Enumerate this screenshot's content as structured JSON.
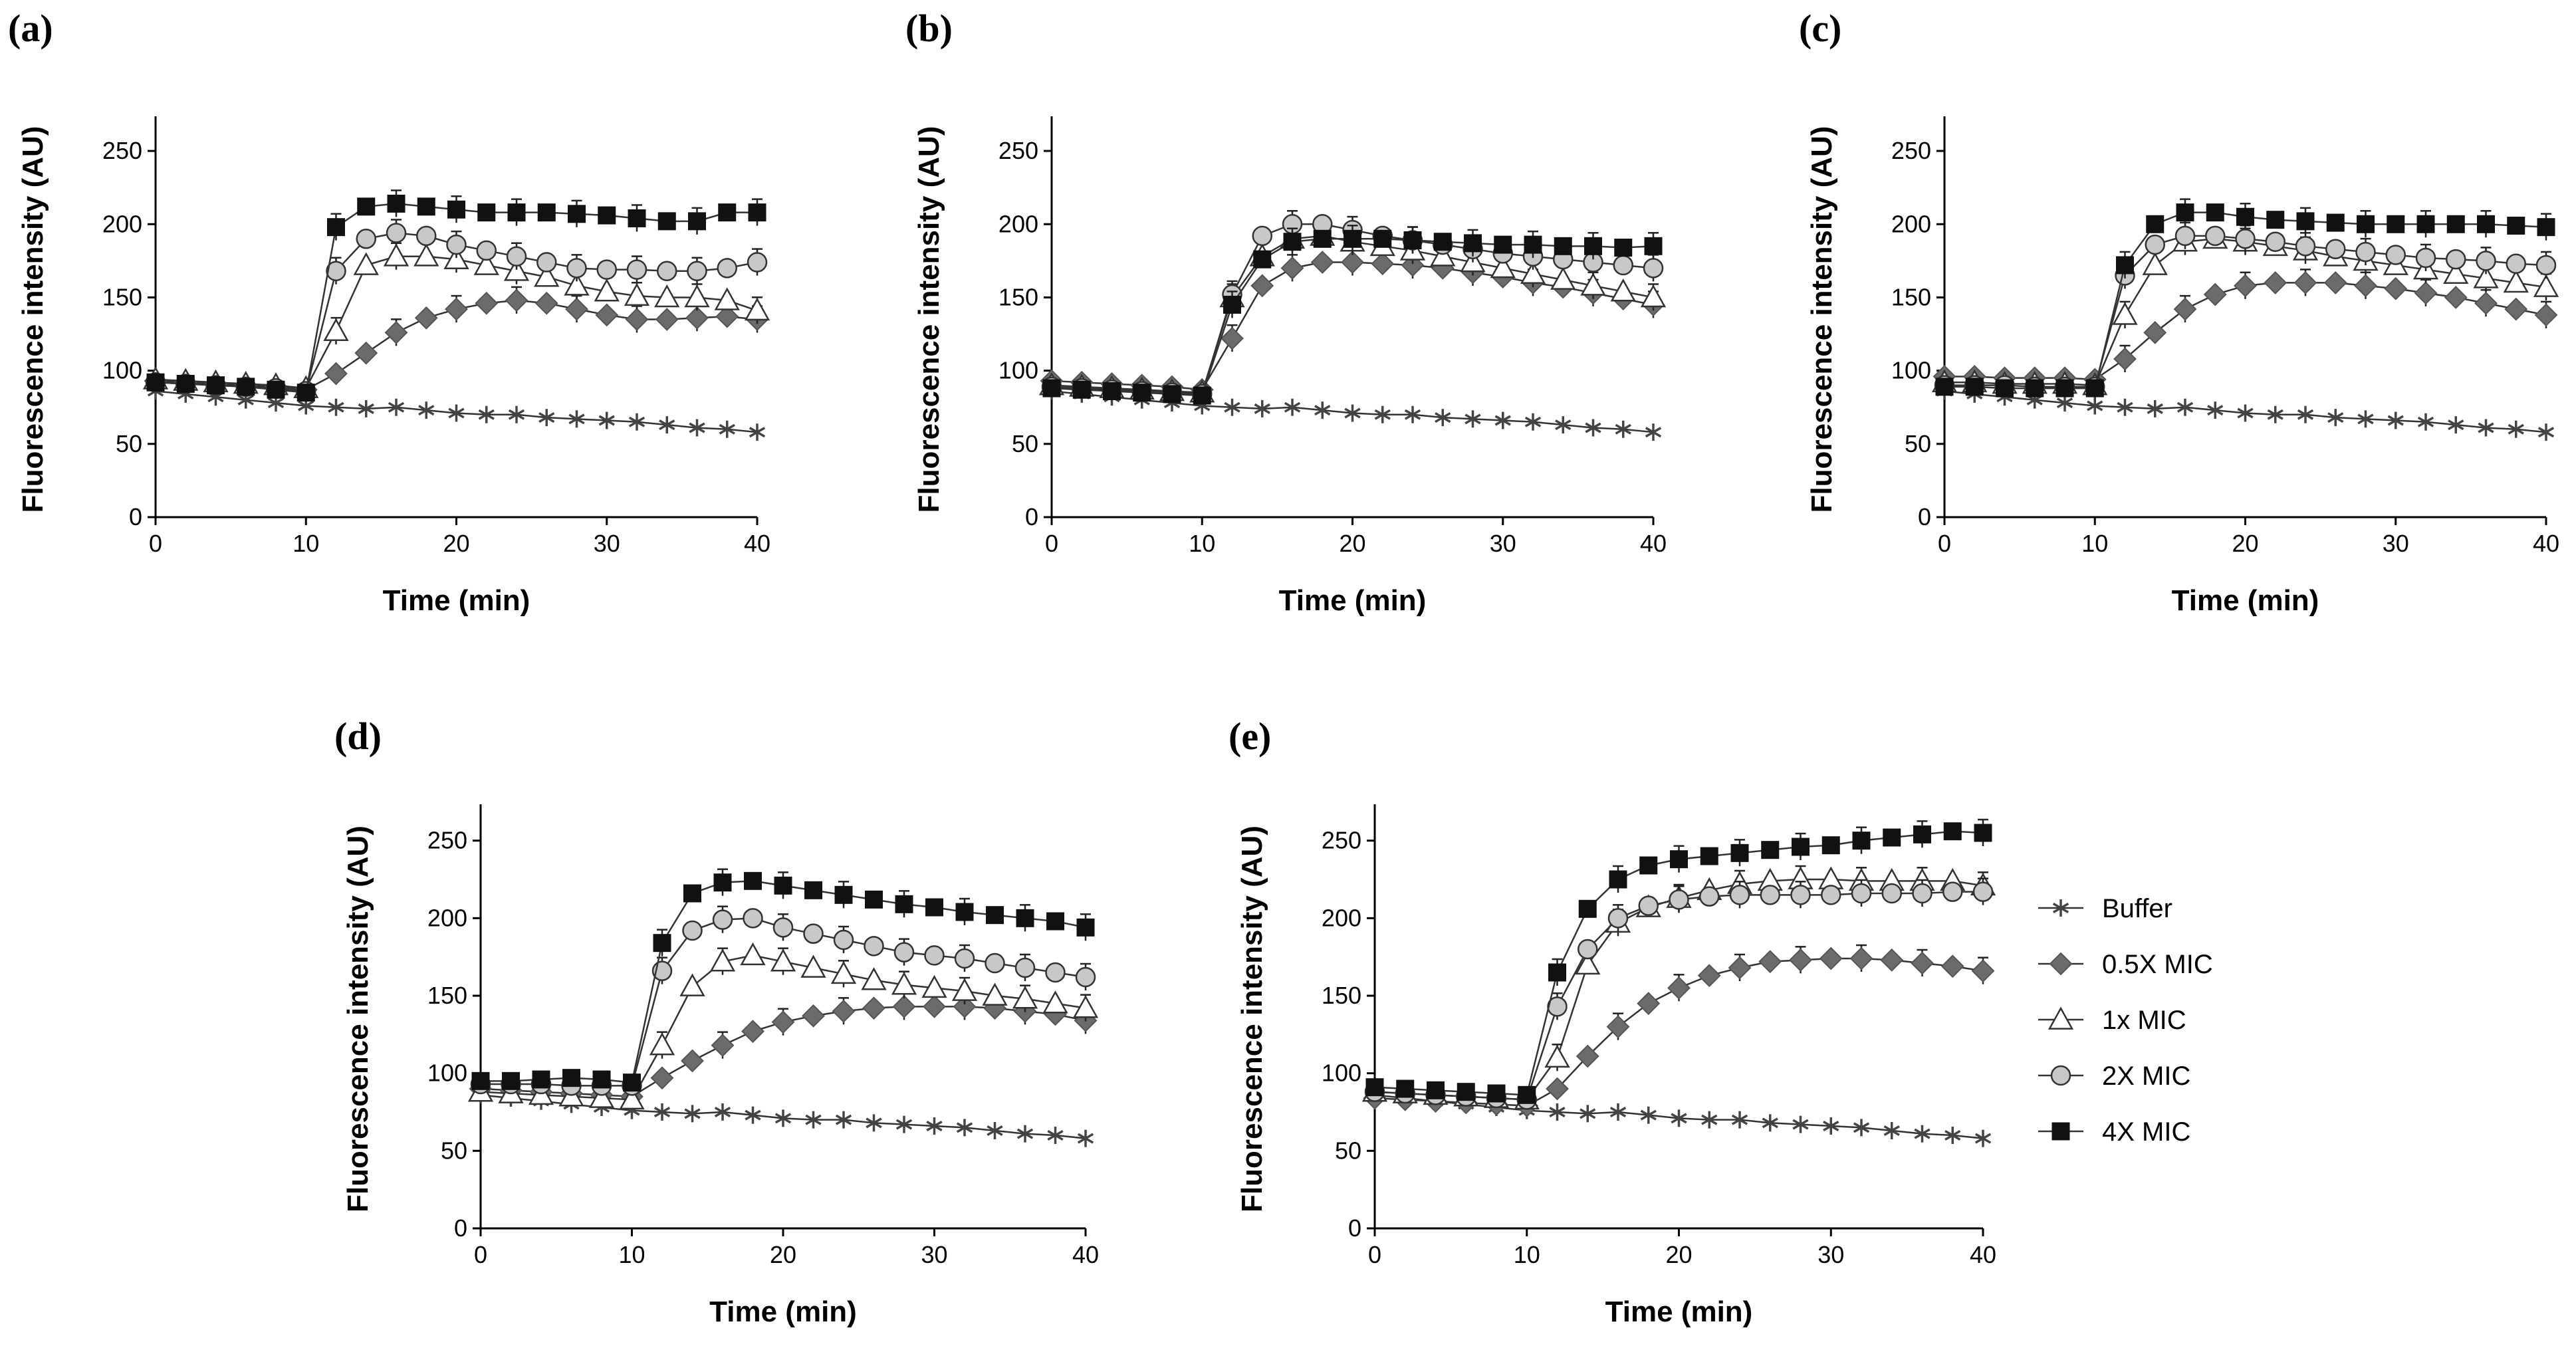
{
  "colors": {
    "buffer": "#444444",
    "half_mic": "#6b6b6b",
    "one_mic": "#ffffff",
    "two_mic": "#c8c8c8",
    "four_mic": "#111111",
    "line": "#333333"
  },
  "legend": [
    {
      "key": "buffer",
      "label": "Buffer",
      "marker": "star"
    },
    {
      "key": "half_mic",
      "label": "0.5X MIC",
      "marker": "diamond"
    },
    {
      "key": "one_mic",
      "label": "1x MIC",
      "marker": "triangle"
    },
    {
      "key": "two_mic",
      "label": "2X MIC",
      "marker": "circle"
    },
    {
      "key": "four_mic",
      "label": "4X MIC",
      "marker": "square"
    }
  ],
  "chart_data": [
    {
      "panel": "(a)",
      "type": "line",
      "xlabel": "Time (min)",
      "ylabel": "Fluorescence intensity (AU)",
      "xlim": [
        0,
        40
      ],
      "ylim": [
        0,
        270
      ],
      "xticks": [
        0,
        10,
        20,
        30,
        40
      ],
      "yticks": [
        0,
        50,
        100,
        150,
        200,
        250
      ],
      "x": [
        0,
        2,
        4,
        6,
        8,
        10,
        12,
        14,
        16,
        18,
        20,
        22,
        24,
        26,
        28,
        30,
        32,
        34,
        36,
        38,
        40
      ],
      "series": [
        {
          "key": "buffer",
          "name": "Buffer",
          "values": [
            86,
            84,
            82,
            80,
            78,
            76,
            75,
            74,
            75,
            73,
            71,
            70,
            70,
            68,
            67,
            66,
            65,
            63,
            61,
            60,
            58
          ]
        },
        {
          "key": "half_mic",
          "name": "0.5X MIC",
          "values": [
            93,
            92,
            91,
            90,
            89,
            87,
            98,
            112,
            126,
            136,
            142,
            146,
            148,
            146,
            142,
            138,
            135,
            135,
            136,
            137,
            135
          ]
        },
        {
          "key": "one_mic",
          "name": "1x MIC",
          "values": [
            94,
            93,
            92,
            91,
            90,
            88,
            127,
            172,
            178,
            178,
            176,
            172,
            168,
            164,
            158,
            154,
            151,
            150,
            150,
            148,
            141
          ]
        },
        {
          "key": "two_mic",
          "name": "2X MIC",
          "values": [
            92,
            91,
            90,
            89,
            88,
            86,
            168,
            190,
            194,
            192,
            186,
            182,
            178,
            174,
            170,
            169,
            169,
            168,
            168,
            170,
            174
          ]
        },
        {
          "key": "four_mic",
          "name": "4X MIC",
          "values": [
            92,
            91,
            90,
            89,
            87,
            85,
            198,
            212,
            214,
            212,
            210,
            208,
            208,
            208,
            207,
            206,
            204,
            202,
            202,
            208,
            208
          ]
        }
      ]
    },
    {
      "panel": "(b)",
      "type": "line",
      "xlabel": "Time (min)",
      "ylabel": "Fluorescence intensity (AU)",
      "xlim": [
        0,
        40
      ],
      "ylim": [
        0,
        270
      ],
      "xticks": [
        0,
        10,
        20,
        30,
        40
      ],
      "yticks": [
        0,
        50,
        100,
        150,
        200,
        250
      ],
      "x": [
        0,
        2,
        4,
        6,
        8,
        10,
        12,
        14,
        16,
        18,
        20,
        22,
        24,
        26,
        28,
        30,
        32,
        34,
        36,
        38,
        40
      ],
      "series": [
        {
          "key": "buffer",
          "name": "Buffer",
          "values": [
            86,
            84,
            82,
            80,
            78,
            76,
            75,
            74,
            75,
            73,
            71,
            70,
            70,
            68,
            67,
            66,
            65,
            63,
            61,
            60,
            58
          ]
        },
        {
          "key": "half_mic",
          "name": "0.5X MIC",
          "values": [
            93,
            92,
            91,
            90,
            89,
            87,
            122,
            158,
            170,
            174,
            174,
            173,
            172,
            170,
            167,
            164,
            160,
            157,
            153,
            149,
            145
          ]
        },
        {
          "key": "one_mic",
          "name": "1x MIC",
          "values": [
            90,
            89,
            88,
            87,
            86,
            85,
            150,
            178,
            190,
            192,
            188,
            185,
            182,
            178,
            174,
            170,
            166,
            162,
            158,
            154,
            150
          ]
        },
        {
          "key": "two_mic",
          "name": "2X MIC",
          "values": [
            89,
            88,
            87,
            86,
            85,
            84,
            152,
            192,
            200,
            200,
            196,
            192,
            189,
            186,
            183,
            180,
            178,
            176,
            174,
            172,
            170
          ]
        },
        {
          "key": "four_mic",
          "name": "4X MIC",
          "values": [
            88,
            87,
            86,
            85,
            84,
            83,
            145,
            176,
            188,
            190,
            190,
            190,
            189,
            188,
            187,
            186,
            186,
            185,
            185,
            184,
            185
          ]
        }
      ]
    },
    {
      "panel": "(c)",
      "type": "line",
      "xlabel": "Time (min)",
      "ylabel": "Fluorescence intensity (AU)",
      "xlim": [
        0,
        40
      ],
      "ylim": [
        0,
        270
      ],
      "xticks": [
        0,
        10,
        20,
        30,
        40
      ],
      "yticks": [
        0,
        50,
        100,
        150,
        200,
        250
      ],
      "x": [
        0,
        2,
        4,
        6,
        8,
        10,
        12,
        14,
        16,
        18,
        20,
        22,
        24,
        26,
        28,
        30,
        32,
        34,
        36,
        38,
        40
      ],
      "series": [
        {
          "key": "buffer",
          "name": "Buffer",
          "values": [
            86,
            84,
            82,
            80,
            78,
            76,
            75,
            74,
            75,
            73,
            71,
            70,
            70,
            68,
            67,
            66,
            65,
            63,
            61,
            60,
            58
          ]
        },
        {
          "key": "half_mic",
          "name": "0.5X MIC",
          "values": [
            96,
            96,
            95,
            95,
            95,
            94,
            108,
            126,
            142,
            152,
            158,
            160,
            160,
            160,
            158,
            156,
            153,
            150,
            146,
            142,
            138
          ]
        },
        {
          "key": "one_mic",
          "name": "1x MIC",
          "values": [
            92,
            92,
            91,
            91,
            91,
            90,
            138,
            172,
            188,
            190,
            188,
            185,
            182,
            178,
            175,
            172,
            169,
            166,
            163,
            160,
            157
          ]
        },
        {
          "key": "two_mic",
          "name": "2X MIC",
          "values": [
            90,
            90,
            90,
            89,
            89,
            89,
            165,
            186,
            192,
            192,
            190,
            188,
            185,
            183,
            181,
            179,
            177,
            176,
            175,
            173,
            172
          ]
        },
        {
          "key": "four_mic",
          "name": "4X MIC",
          "values": [
            89,
            89,
            88,
            88,
            88,
            88,
            172,
            200,
            208,
            208,
            205,
            203,
            202,
            201,
            200,
            200,
            200,
            200,
            200,
            199,
            198
          ]
        }
      ]
    },
    {
      "panel": "(d)",
      "type": "line",
      "xlabel": "Time (min)",
      "ylabel": "Fluorescence intensity (AU)",
      "xlim": [
        0,
        40
      ],
      "ylim": [
        0,
        270
      ],
      "xticks": [
        0,
        10,
        20,
        30,
        40
      ],
      "yticks": [
        0,
        50,
        100,
        150,
        200,
        250
      ],
      "x": [
        0,
        2,
        4,
        6,
        8,
        10,
        12,
        14,
        16,
        18,
        20,
        22,
        24,
        26,
        28,
        30,
        32,
        34,
        36,
        38,
        40
      ],
      "series": [
        {
          "key": "buffer",
          "name": "Buffer",
          "values": [
            86,
            84,
            82,
            80,
            78,
            76,
            75,
            74,
            75,
            73,
            71,
            70,
            70,
            68,
            67,
            66,
            65,
            63,
            61,
            60,
            58
          ]
        },
        {
          "key": "half_mic",
          "name": "0.5X MIC",
          "values": [
            90,
            89,
            88,
            87,
            86,
            85,
            97,
            108,
            118,
            127,
            133,
            137,
            140,
            142,
            143,
            143,
            143,
            142,
            140,
            138,
            134
          ]
        },
        {
          "key": "one_mic",
          "name": "1x MIC",
          "values": [
            88,
            87,
            86,
            85,
            84,
            83,
            118,
            156,
            172,
            176,
            172,
            168,
            164,
            160,
            157,
            155,
            153,
            150,
            148,
            145,
            142
          ]
        },
        {
          "key": "two_mic",
          "name": "2X MIC",
          "values": [
            93,
            93,
            93,
            92,
            92,
            92,
            166,
            192,
            199,
            200,
            194,
            190,
            186,
            182,
            178,
            176,
            174,
            171,
            168,
            165,
            162
          ]
        },
        {
          "key": "four_mic",
          "name": "4X MIC",
          "values": [
            95,
            95,
            96,
            97,
            96,
            94,
            184,
            216,
            223,
            224,
            221,
            218,
            215,
            212,
            209,
            207,
            204,
            202,
            200,
            198,
            194
          ]
        }
      ]
    },
    {
      "panel": "(e)",
      "type": "line",
      "xlabel": "Time (min)",
      "ylabel": "Fluorescence intensity (AU)",
      "xlim": [
        0,
        40
      ],
      "ylim": [
        0,
        270
      ],
      "xticks": [
        0,
        10,
        20,
        30,
        40
      ],
      "yticks": [
        0,
        50,
        100,
        150,
        200,
        250
      ],
      "x": [
        0,
        2,
        4,
        6,
        8,
        10,
        12,
        14,
        16,
        18,
        20,
        22,
        24,
        26,
        28,
        30,
        32,
        34,
        36,
        38,
        40
      ],
      "series": [
        {
          "key": "buffer",
          "name": "Buffer",
          "values": [
            86,
            84,
            82,
            80,
            78,
            76,
            75,
            74,
            75,
            73,
            71,
            70,
            70,
            68,
            67,
            66,
            65,
            63,
            61,
            60,
            58
          ]
        },
        {
          "key": "half_mic",
          "name": "0.5X MIC",
          "values": [
            84,
            83,
            82,
            81,
            80,
            79,
            90,
            111,
            130,
            145,
            155,
            163,
            168,
            172,
            173,
            174,
            174,
            173,
            171,
            169,
            166
          ]
        },
        {
          "key": "one_mic",
          "name": "1x MIC",
          "values": [
            88,
            87,
            86,
            85,
            84,
            83,
            110,
            170,
            197,
            207,
            213,
            218,
            222,
            224,
            225,
            225,
            224,
            224,
            224,
            224,
            221
          ]
        },
        {
          "key": "two_mic",
          "name": "2X MIC",
          "values": [
            88,
            87,
            86,
            85,
            84,
            83,
            143,
            180,
            200,
            208,
            212,
            214,
            215,
            215,
            215,
            215,
            216,
            216,
            216,
            217,
            217
          ]
        },
        {
          "key": "four_mic",
          "name": "4X MIC",
          "values": [
            91,
            90,
            89,
            88,
            87,
            86,
            165,
            206,
            225,
            234,
            238,
            240,
            242,
            244,
            246,
            247,
            250,
            252,
            254,
            256,
            255
          ]
        }
      ]
    }
  ]
}
